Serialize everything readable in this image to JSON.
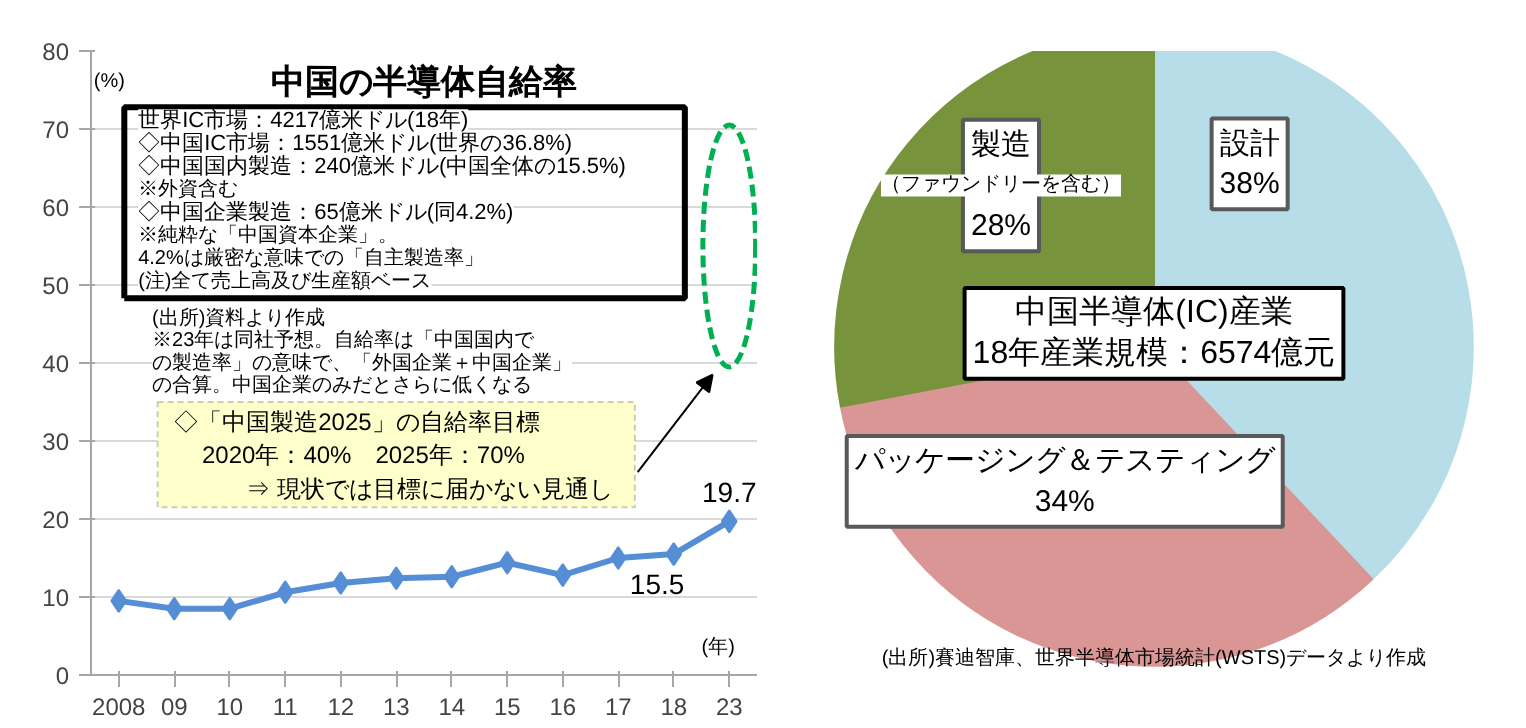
{
  "chart_data": [
    {
      "type": "line",
      "title": "中国の半導体自給率",
      "ylabel": "(%)",
      "xlabel": "(年)",
      "categories": [
        "2008",
        "09",
        "10",
        "11",
        "12",
        "13",
        "14",
        "15",
        "16",
        "17",
        "18",
        "23"
      ],
      "series": [
        {
          "color": "#558ed5",
          "values": [
            9.5,
            8.5,
            8.5,
            10.6,
            11.8,
            12.4,
            12.6,
            14.4,
            12.8,
            15.0,
            15.5,
            19.7
          ],
          "value_labels": [
            null,
            null,
            null,
            null,
            null,
            null,
            null,
            null,
            null,
            null,
            "15.5",
            "19.7"
          ]
        }
      ],
      "marker": "diamond",
      "ylim": [
        0,
        80
      ],
      "yticks": [
        0,
        10,
        20,
        30,
        40,
        50,
        60,
        70,
        80
      ],
      "grid": "y",
      "annotations": [
        "世界IC市場：4217億米ドル(18年)",
        "◇中国IC市場：1551億米ドル(世界の36.8%)",
        "◇中国国内製造：240億米ドル(中国全体の15.5%)",
        "※外資含む",
        "◇中国企業製造：65億米ドル(同4.2%)",
        "※純粋な「中国資本企業」。",
        "4.2%は厳密な意味での「自主製造率」",
        "(注)全て売上高及び生産額ベース",
        "(出所)資料より作成",
        "※23年は同社予想。自給率は「中国国内で",
        "の製造率」の意味で、「外国企業＋中国企業」",
        "の合算。中国企業のみだとさらに低くなる",
        "◇「中国製造2025」の自給率目標",
        "2020年：40%　2025年：70%",
        "⇒ 現状では目標に届かない見通し"
      ]
    },
    {
      "type": "pie",
      "title": "中国半導体(IC)産業",
      "subtitle": "18年産業規模：6574億元",
      "categories": [
        "設計",
        "パッケージング＆テスティング",
        "製造"
      ],
      "values": [
        38,
        34,
        28
      ],
      "colors": [
        "#b7dde8",
        "#d99694",
        "#77933c"
      ],
      "value_labels": [
        "38%",
        "34%",
        "28%"
      ],
      "annotations": [
        "（ファウンドリーを含む）",
        "(出所)賽迪智庫、世界半導体市場統計(WSTS)データより作成"
      ]
    }
  ]
}
